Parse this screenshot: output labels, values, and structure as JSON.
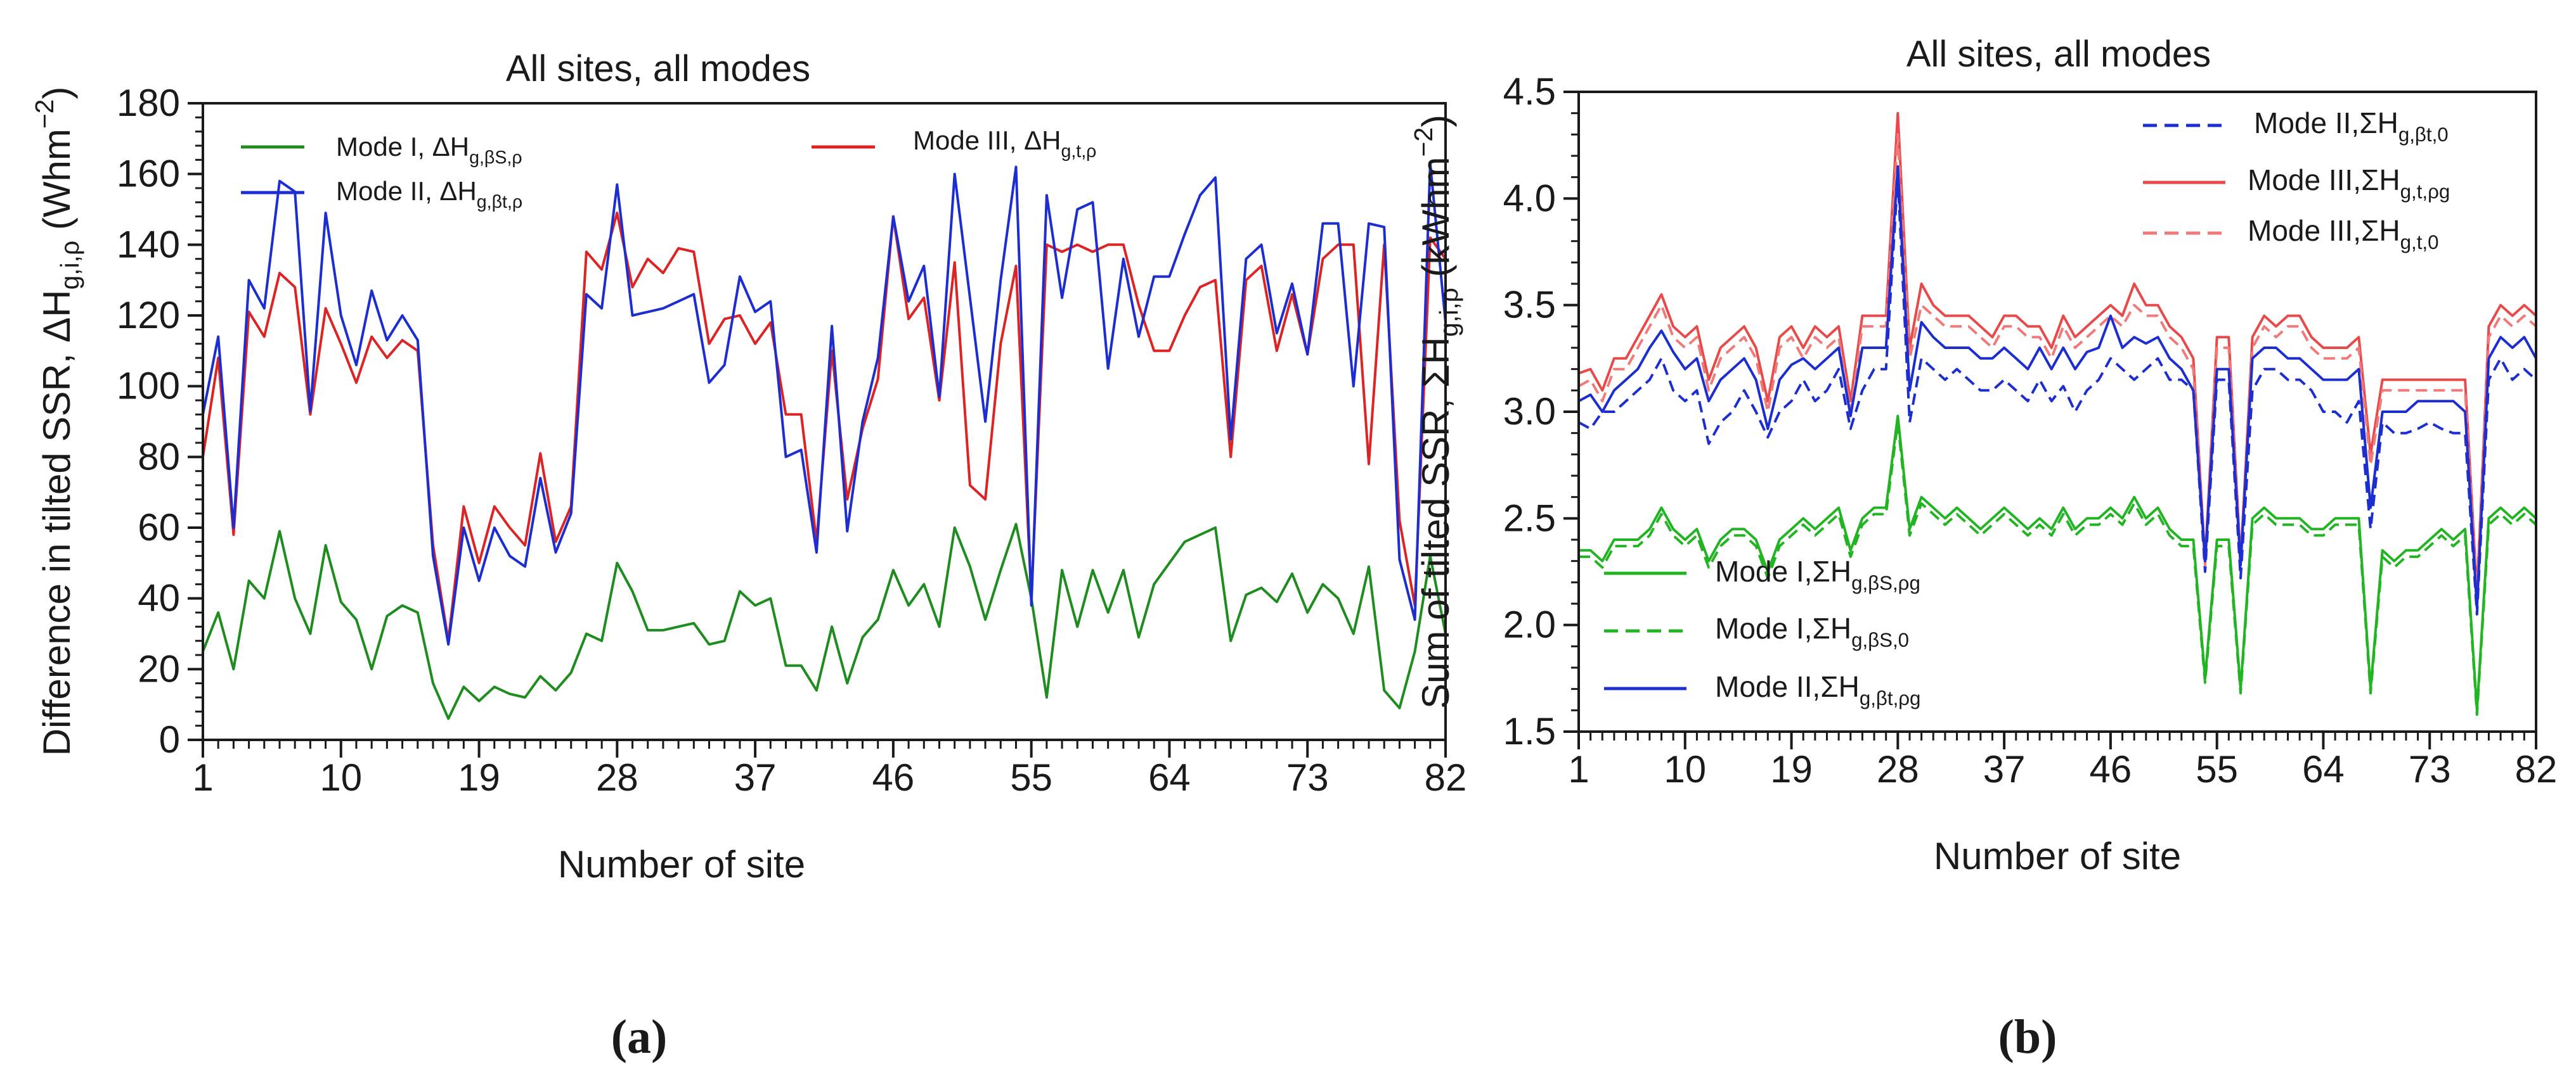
{
  "chart_data": [
    {
      "panel_label": "(a)",
      "type": "line",
      "title": "All sites, all modes",
      "xlabel": "Number of site",
      "ylabel_text": "Difference in tilted SSR,  ΔH",
      "ylabel_sub": "g,i,ρ",
      "ylabel_unit": " (Whm",
      "ylabel_sup": "−2",
      "ylabel_close": ")",
      "xlim": [
        1,
        82
      ],
      "ylim": [
        0,
        180
      ],
      "x_ticks": [
        1,
        10,
        19,
        28,
        37,
        46,
        55,
        64,
        73,
        82
      ],
      "x_tick_labels": [
        "1",
        "10",
        "19",
        "28",
        "37",
        "46",
        "55",
        "64",
        "73",
        "82"
      ],
      "y_ticks": [
        0,
        20,
        40,
        60,
        80,
        100,
        120,
        140,
        160,
        180
      ],
      "y_tick_labels": [
        "0",
        "20",
        "40",
        "60",
        "80",
        "100",
        "120",
        "140",
        "160",
        "180"
      ],
      "x_start": 1,
      "series": [
        {
          "name": "Mode I,  ΔHg,βS,ρ",
          "legend_text": "Mode I,   ΔH",
          "legend_sub": "g,βS,ρ",
          "color": "#1e8c1e",
          "dash": "solid",
          "values": [
            25,
            36,
            20,
            45,
            40,
            59,
            40,
            30,
            55,
            39,
            34,
            20,
            35,
            38,
            36,
            16,
            6,
            15,
            11,
            15,
            13,
            12,
            18,
            14,
            19,
            30,
            28,
            50,
            42,
            31,
            31,
            32,
            33,
            27,
            28,
            42,
            38,
            40,
            21,
            21,
            14,
            32,
            16,
            29,
            34,
            48,
            38,
            44,
            32,
            60,
            49,
            34,
            48,
            61,
            40,
            12,
            48,
            32,
            48,
            36,
            48,
            29,
            44,
            50,
            56,
            58,
            60,
            28,
            41,
            43,
            39,
            47,
            36,
            44,
            40,
            30,
            49,
            14,
            9,
            25,
            52,
            30
          ]
        },
        {
          "name": "Mode III,  ΔHg,t,ρ",
          "legend_text": "Mode III,   ΔH",
          "legend_sub": "g,t,ρ",
          "color": "#dd2424",
          "dash": "solid",
          "values": [
            80,
            108,
            58,
            121,
            114,
            132,
            128,
            92,
            122,
            112,
            101,
            114,
            108,
            113,
            110,
            55,
            28,
            66,
            50,
            66,
            60,
            55,
            81,
            56,
            66,
            138,
            133,
            149,
            128,
            136,
            132,
            139,
            138,
            112,
            119,
            120,
            112,
            118,
            92,
            92,
            56,
            110,
            68,
            88,
            102,
            148,
            119,
            125,
            96,
            135,
            72,
            68,
            112,
            134,
            40,
            140,
            138,
            140,
            138,
            140,
            140,
            123,
            110,
            110,
            120,
            128,
            130,
            80,
            130,
            134,
            110,
            126,
            109,
            136,
            140,
            140,
            78,
            140,
            62,
            38,
            142,
            136
          ]
        },
        {
          "name": "Mode II,  ΔHg,βt,ρ",
          "legend_text": "Mode II,   ΔH",
          "legend_sub": "g,βt,ρ",
          "color": "#1c2ed0",
          "dash": "solid",
          "values": [
            92,
            114,
            60,
            130,
            122,
            158,
            155,
            93,
            149,
            120,
            106,
            127,
            113,
            120,
            113,
            52,
            27,
            60,
            45,
            60,
            52,
            49,
            74,
            53,
            64,
            126,
            122,
            157,
            120,
            121,
            122,
            124,
            126,
            101,
            106,
            131,
            121,
            124,
            80,
            82,
            53,
            117,
            59,
            90,
            108,
            148,
            124,
            134,
            97,
            160,
            125,
            90,
            130,
            162,
            38,
            154,
            125,
            150,
            152,
            105,
            136,
            114,
            131,
            131,
            143,
            154,
            159,
            85,
            136,
            140,
            115,
            129,
            109,
            146,
            146,
            100,
            146,
            145,
            51,
            34,
            163,
            118
          ]
        }
      ]
    },
    {
      "panel_label": "(b)",
      "type": "line",
      "title": "All sites, all modes",
      "xlabel": "Number of site",
      "ylabel_text": "Sum of tilted SSR,  ΣH",
      "ylabel_sub": "g,i,ρ",
      "ylabel_unit": " (kWhm",
      "ylabel_sup": "−2",
      "ylabel_close": ")",
      "xlim": [
        1,
        82
      ],
      "ylim": [
        1.5,
        4.5
      ],
      "x_ticks": [
        1,
        10,
        19,
        28,
        37,
        46,
        55,
        64,
        73,
        82
      ],
      "x_tick_labels": [
        "1",
        "10",
        "19",
        "28",
        "37",
        "46",
        "55",
        "64",
        "73",
        "82"
      ],
      "y_ticks": [
        1.5,
        2.0,
        2.5,
        3.0,
        3.5,
        4.0,
        4.5
      ],
      "y_tick_labels": [
        "1.5",
        "2.0",
        "2.5",
        "3.0",
        "3.5",
        "4.0",
        "4.5"
      ],
      "x_start": 1,
      "series": [
        {
          "name": "Mode II,ΣHg,βt,0",
          "legend_text": "Mode II,ΣH",
          "legend_sub": "g,βt,0",
          "color": "#1c2ed0",
          "dash": "dashed",
          "values": [
            2.95,
            2.92,
            3.0,
            3.0,
            3.05,
            3.1,
            3.15,
            3.25,
            3.1,
            3.05,
            3.1,
            2.85,
            2.95,
            3.0,
            3.1,
            3.0,
            2.88,
            3.0,
            3.05,
            3.15,
            3.05,
            3.1,
            3.2,
            2.92,
            3.1,
            3.2,
            3.2,
            4.1,
            2.95,
            3.25,
            3.2,
            3.15,
            3.2,
            3.15,
            3.1,
            3.1,
            3.15,
            3.1,
            3.05,
            3.15,
            3.05,
            3.12,
            3.0,
            3.1,
            3.15,
            3.25,
            3.2,
            3.15,
            3.2,
            3.25,
            3.15,
            3.15,
            3.1,
            2.25,
            3.15,
            3.15,
            2.22,
            3.1,
            3.2,
            3.2,
            3.15,
            3.15,
            3.1,
            3.0,
            3.0,
            2.95,
            3.05,
            2.45,
            2.95,
            2.9,
            2.9,
            2.92,
            2.95,
            2.92,
            2.9,
            2.9,
            2.05,
            3.15,
            3.25,
            3.15,
            3.2,
            3.15
          ]
        },
        {
          "name": "Mode III,ΣHg,t,ρg",
          "legend_text": "Mode III,ΣH",
          "legend_sub": "g,t,ρg",
          "color": "#e84a4a",
          "dash": "solid",
          "values": [
            3.18,
            3.2,
            3.1,
            3.25,
            3.25,
            3.35,
            3.45,
            3.55,
            3.4,
            3.35,
            3.4,
            3.15,
            3.3,
            3.35,
            3.4,
            3.3,
            3.05,
            3.35,
            3.4,
            3.3,
            3.4,
            3.35,
            3.4,
            3.05,
            3.45,
            3.45,
            3.45,
            4.4,
            3.3,
            3.6,
            3.5,
            3.45,
            3.45,
            3.45,
            3.4,
            3.35,
            3.45,
            3.45,
            3.4,
            3.4,
            3.3,
            3.45,
            3.35,
            3.4,
            3.45,
            3.5,
            3.45,
            3.6,
            3.5,
            3.5,
            3.4,
            3.35,
            3.25,
            2.3,
            3.35,
            3.35,
            2.3,
            3.35,
            3.45,
            3.4,
            3.45,
            3.45,
            3.35,
            3.3,
            3.3,
            3.3,
            3.35,
            2.8,
            3.15,
            3.15,
            3.15,
            3.15,
            3.15,
            3.15,
            3.15,
            3.15,
            2.15,
            3.4,
            3.5,
            3.45,
            3.5,
            3.45
          ]
        },
        {
          "name": "Mode III,ΣHg,t,0",
          "legend_text": "Mode III,ΣH",
          "legend_sub": "g,t,0",
          "color": "#f07a7a",
          "dash": "dashed",
          "values": [
            3.12,
            3.15,
            3.05,
            3.2,
            3.2,
            3.3,
            3.4,
            3.5,
            3.35,
            3.3,
            3.35,
            3.1,
            3.25,
            3.3,
            3.35,
            3.25,
            3.0,
            3.3,
            3.35,
            3.25,
            3.35,
            3.3,
            3.35,
            3.0,
            3.4,
            3.4,
            3.4,
            4.3,
            3.25,
            3.5,
            3.45,
            3.4,
            3.4,
            3.4,
            3.35,
            3.3,
            3.4,
            3.4,
            3.35,
            3.35,
            3.25,
            3.4,
            3.3,
            3.35,
            3.4,
            3.45,
            3.4,
            3.5,
            3.45,
            3.45,
            3.35,
            3.3,
            3.2,
            2.28,
            3.3,
            3.3,
            2.28,
            3.3,
            3.4,
            3.35,
            3.4,
            3.4,
            3.3,
            3.25,
            3.25,
            3.25,
            3.3,
            2.75,
            3.1,
            3.1,
            3.1,
            3.1,
            3.1,
            3.1,
            3.1,
            3.1,
            2.12,
            3.35,
            3.45,
            3.4,
            3.45,
            3.4
          ]
        },
        {
          "name": "Mode I,ΣHg,βS,ρg",
          "legend_text": "Mode I,ΣH",
          "legend_sub": "g,βS,ρg",
          "color": "#22b422",
          "dash": "solid",
          "values": [
            2.35,
            2.35,
            2.3,
            2.4,
            2.4,
            2.4,
            2.45,
            2.55,
            2.45,
            2.4,
            2.45,
            2.3,
            2.4,
            2.45,
            2.45,
            2.4,
            2.25,
            2.4,
            2.45,
            2.5,
            2.45,
            2.5,
            2.55,
            2.35,
            2.5,
            2.55,
            2.55,
            2.98,
            2.45,
            2.6,
            2.55,
            2.5,
            2.55,
            2.5,
            2.45,
            2.5,
            2.55,
            2.5,
            2.45,
            2.5,
            2.45,
            2.55,
            2.45,
            2.5,
            2.5,
            2.55,
            2.5,
            2.6,
            2.5,
            2.55,
            2.45,
            2.4,
            2.4,
            1.75,
            2.4,
            2.4,
            1.7,
            2.5,
            2.55,
            2.5,
            2.5,
            2.5,
            2.45,
            2.45,
            2.5,
            2.5,
            2.5,
            1.7,
            2.35,
            2.3,
            2.35,
            2.35,
            2.4,
            2.45,
            2.4,
            2.45,
            1.6,
            2.5,
            2.55,
            2.5,
            2.55,
            2.5
          ]
        },
        {
          "name": "Mode I,ΣHg,βS,0",
          "legend_text": "Mode I,ΣH",
          "legend_sub": "g,βS,0",
          "color": "#22b422",
          "dash": "dashed",
          "values": [
            2.32,
            2.32,
            2.27,
            2.37,
            2.37,
            2.37,
            2.42,
            2.52,
            2.42,
            2.37,
            2.42,
            2.27,
            2.37,
            2.42,
            2.42,
            2.37,
            2.22,
            2.37,
            2.42,
            2.47,
            2.42,
            2.47,
            2.52,
            2.32,
            2.47,
            2.52,
            2.52,
            2.95,
            2.42,
            2.57,
            2.52,
            2.47,
            2.52,
            2.47,
            2.42,
            2.47,
            2.52,
            2.47,
            2.42,
            2.47,
            2.42,
            2.52,
            2.42,
            2.47,
            2.47,
            2.52,
            2.47,
            2.57,
            2.47,
            2.52,
            2.42,
            2.37,
            2.37,
            1.73,
            2.37,
            2.37,
            1.68,
            2.47,
            2.52,
            2.47,
            2.47,
            2.47,
            2.42,
            2.42,
            2.47,
            2.47,
            2.47,
            1.68,
            2.32,
            2.27,
            2.32,
            2.32,
            2.37,
            2.42,
            2.37,
            2.42,
            1.58,
            2.47,
            2.52,
            2.47,
            2.52,
            2.47
          ]
        },
        {
          "name": "Mode II,ΣHg,βt,ρg",
          "legend_text": "Mode II,ΣH",
          "legend_sub": "g,βt,ρg",
          "color": "#1c2ed0",
          "dash": "solid",
          "values": [
            3.05,
            3.08,
            3.0,
            3.1,
            3.15,
            3.2,
            3.3,
            3.38,
            3.28,
            3.2,
            3.25,
            3.05,
            3.15,
            3.2,
            3.25,
            3.15,
            2.92,
            3.15,
            3.22,
            3.25,
            3.2,
            3.25,
            3.3,
            2.98,
            3.3,
            3.3,
            3.3,
            4.15,
            3.1,
            3.42,
            3.35,
            3.3,
            3.3,
            3.3,
            3.25,
            3.25,
            3.3,
            3.25,
            3.2,
            3.3,
            3.2,
            3.3,
            3.2,
            3.28,
            3.3,
            3.45,
            3.3,
            3.35,
            3.32,
            3.35,
            3.25,
            3.2,
            3.1,
            2.3,
            3.2,
            3.2,
            2.28,
            3.25,
            3.3,
            3.3,
            3.25,
            3.25,
            3.2,
            3.15,
            3.15,
            3.15,
            3.2,
            2.55,
            3.0,
            3.0,
            3.0,
            3.05,
            3.05,
            3.05,
            3.05,
            3.0,
            2.08,
            3.25,
            3.35,
            3.3,
            3.35,
            3.25
          ]
        }
      ]
    }
  ]
}
